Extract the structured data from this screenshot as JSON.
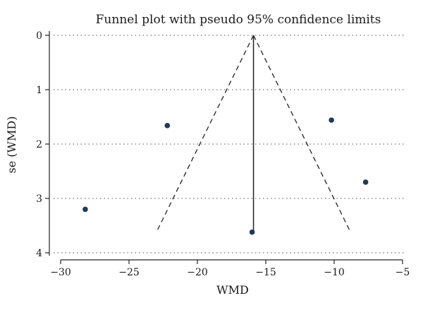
{
  "chart_data": {
    "type": "scatter",
    "title": "Funnel plot with pseudo 95% confidence limits",
    "xlabel": "WMD",
    "ylabel": "se (WMD)",
    "xlim": [
      -30,
      -5
    ],
    "ylim": [
      0,
      4
    ],
    "y_reversed": true,
    "grid": "horizontal-dotted",
    "x_ticks": [
      "−30",
      "−25",
      "−20",
      "−15",
      "−10",
      "−5"
    ],
    "y_ticks": [
      "0",
      "1",
      "2",
      "3",
      "4"
    ],
    "x_tick_values": [
      -30,
      -25,
      -20,
      -15,
      -10,
      -5
    ],
    "y_tick_values": [
      0,
      1,
      2,
      3,
      4
    ],
    "points": [
      {
        "x": -28.2,
        "y": 3.2
      },
      {
        "x": -22.2,
        "y": 1.66
      },
      {
        "x": -16.0,
        "y": 3.62
      },
      {
        "x": -10.2,
        "y": 1.56
      },
      {
        "x": -7.7,
        "y": 2.7
      }
    ],
    "pooled_estimate": -15.9,
    "ci_limit_se": 3.62,
    "point_color": "#1f3b57"
  }
}
